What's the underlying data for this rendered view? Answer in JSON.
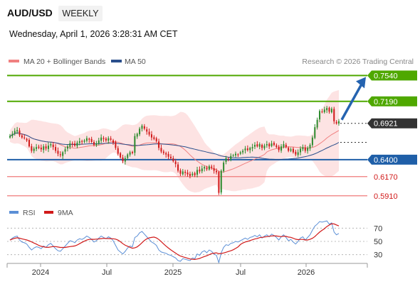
{
  "header": {
    "symbol": "AUD/USD",
    "timeframe": "WEEKLY",
    "timestamp": "Wednesday, April 1, 2026 3:28:31 AM CET"
  },
  "legend": {
    "ma20": "MA 20 + Bollinger Bands",
    "ma50": "MA 50",
    "credit": "Research © 2026 Trading Central"
  },
  "rsi_legend": {
    "rsi": "RSI",
    "ma": "9MA"
  },
  "colors": {
    "bull": "#2e8b2e",
    "bear": "#d11a1a",
    "green_level": "#4fa800",
    "blue_level": "#1f5fa8",
    "red_level": "#ef7a7a",
    "ma20": "#f08080",
    "ma50": "#2a4f8c",
    "band": "#fde3e3",
    "rsi": "#5b8fd6",
    "rsi_ma": "#d11a1a",
    "arrow": "#2563b0",
    "price_bg": "#333333"
  },
  "chart_data": {
    "type": "candlestick",
    "xlabels": [
      "2024",
      "Jul",
      "2025",
      "Jul",
      "2026"
    ],
    "ylim": [
      0.585,
      0.765
    ],
    "current_price": "0.6921",
    "levels": [
      {
        "name": "resistance-2",
        "value": 0.754,
        "label": "0.7540",
        "kind": "green"
      },
      {
        "name": "resistance-1",
        "value": 0.719,
        "label": "0.7190",
        "kind": "green"
      },
      {
        "name": "pivot",
        "value": 0.64,
        "label": "0.6400",
        "kind": "blue"
      },
      {
        "name": "support-1",
        "value": 0.617,
        "label": "0.6170",
        "kind": "red"
      },
      {
        "name": "support-2",
        "value": 0.591,
        "label": "0.5910",
        "kind": "red"
      }
    ],
    "projection_target": 0.754,
    "rsi_levels": [
      {
        "value": 70,
        "label": "70"
      },
      {
        "value": 50,
        "label": "50"
      },
      {
        "value": 30,
        "label": "30"
      }
    ],
    "rsi_ylim": [
      20,
      80
    ],
    "closes": [
      0.672,
      0.675,
      0.679,
      0.68,
      0.673,
      0.67,
      0.669,
      0.666,
      0.658,
      0.652,
      0.655,
      0.657,
      0.656,
      0.654,
      0.658,
      0.655,
      0.659,
      0.661,
      0.657,
      0.652,
      0.648,
      0.646,
      0.65,
      0.654,
      0.658,
      0.662,
      0.661,
      0.659,
      0.663,
      0.665,
      0.664,
      0.666,
      0.669,
      0.667,
      0.664,
      0.66,
      0.662,
      0.666,
      0.67,
      0.668,
      0.666,
      0.669,
      0.667,
      0.663,
      0.656,
      0.648,
      0.643,
      0.638,
      0.642,
      0.647,
      0.65,
      0.649,
      0.672,
      0.675,
      0.682,
      0.686,
      0.682,
      0.678,
      0.674,
      0.67,
      0.668,
      0.665,
      0.656,
      0.651,
      0.649,
      0.647,
      0.644,
      0.642,
      0.638,
      0.634,
      0.625,
      0.621,
      0.624,
      0.622,
      0.62,
      0.618,
      0.621,
      0.619,
      0.626,
      0.624,
      0.628,
      0.63,
      0.627,
      0.631,
      0.629,
      0.625,
      0.623,
      0.595,
      0.625,
      0.636,
      0.642,
      0.641,
      0.645,
      0.646,
      0.648,
      0.647,
      0.65,
      0.652,
      0.655,
      0.653,
      0.656,
      0.657,
      0.66,
      0.658,
      0.661,
      0.656,
      0.659,
      0.661,
      0.658,
      0.662,
      0.66,
      0.657,
      0.653,
      0.658,
      0.661,
      0.657,
      0.652,
      0.654,
      0.65,
      0.647,
      0.65,
      0.655,
      0.657,
      0.652,
      0.656,
      0.66,
      0.67,
      0.684,
      0.694,
      0.706,
      0.705,
      0.708,
      0.71,
      0.705,
      0.709,
      0.692,
      0.689,
      0.6921
    ],
    "rsi": [
      52,
      55,
      57,
      58,
      52,
      49,
      48,
      46,
      41,
      37,
      40,
      42,
      41,
      39,
      43,
      41,
      45,
      47,
      43,
      39,
      36,
      35,
      39,
      43,
      47,
      51,
      50,
      48,
      52,
      54,
      53,
      55,
      58,
      56,
      53,
      49,
      51,
      55,
      58,
      56,
      54,
      57,
      55,
      51,
      44,
      37,
      34,
      31,
      35,
      40,
      43,
      42,
      56,
      58,
      63,
      65,
      61,
      57,
      53,
      49,
      47,
      44,
      37,
      34,
      33,
      32,
      30,
      29,
      27,
      25,
      21,
      20,
      24,
      23,
      22,
      21,
      25,
      24,
      31,
      29,
      34,
      36,
      33,
      37,
      35,
      31,
      29,
      18,
      33,
      41,
      45,
      44,
      47,
      48,
      50,
      49,
      51,
      53,
      55,
      53,
      56,
      57,
      59,
      57,
      60,
      55,
      58,
      60,
      57,
      61,
      59,
      56,
      52,
      57,
      60,
      56,
      51,
      53,
      49,
      46,
      50,
      55,
      57,
      52,
      56,
      60,
      67,
      73,
      76,
      80,
      79,
      80,
      81,
      76,
      78,
      64,
      60,
      62
    ]
  }
}
